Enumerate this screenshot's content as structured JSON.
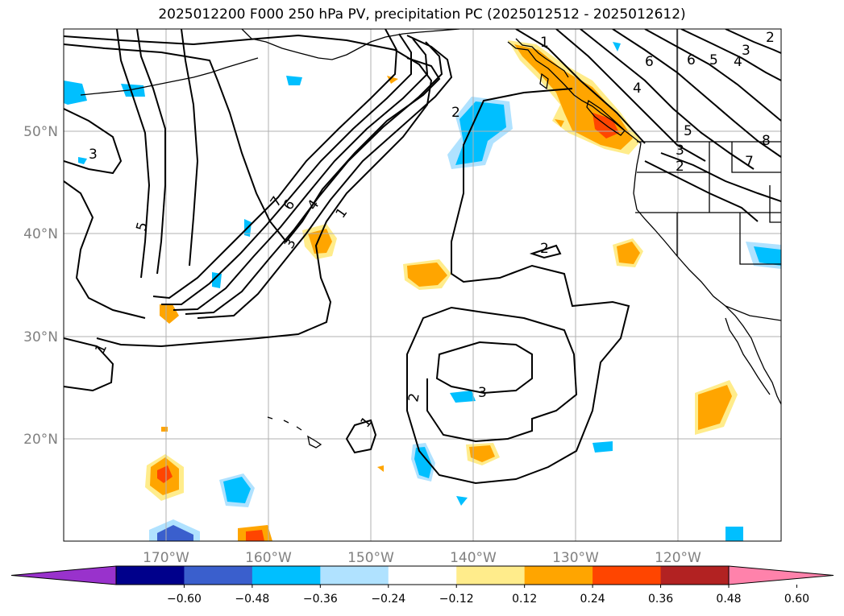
{
  "title": "2025012200 F000 250 hPa PV, precipitation PC (2025012512 - 2025012612)",
  "map": {
    "lat_labels": [
      "50°N",
      "40°N",
      "30°N",
      "20°N"
    ],
    "lon_labels": [
      "170°W",
      "160°W",
      "150°W",
      "140°W",
      "130°W",
      "120°W"
    ],
    "contour_labels": [
      "1",
      "2",
      "3",
      "4",
      "5",
      "6",
      "7",
      "8"
    ]
  },
  "colorbar": {
    "ticks": [
      "−0.60",
      "−0.48",
      "−0.36",
      "−0.24",
      "−0.12",
      "0.12",
      "0.24",
      "0.36",
      "0.48",
      "0.60"
    ],
    "colors": [
      "#9932cc",
      "#00008b",
      "#3a5fcd",
      "#00bfff",
      "#b0e2ff",
      "#ffffff",
      "#ffec8b",
      "#ffa500",
      "#ff4500",
      "#b22222",
      "#ff82ab"
    ]
  },
  "colors": {
    "pos_light": "#ffec8b",
    "pos_mid": "#ffa500",
    "pos_strong": "#ff4500",
    "neg_light": "#b0e2ff",
    "neg_mid": "#00bfff",
    "neg_strong": "#3a5fcd",
    "grid": "#b0b0b0"
  }
}
